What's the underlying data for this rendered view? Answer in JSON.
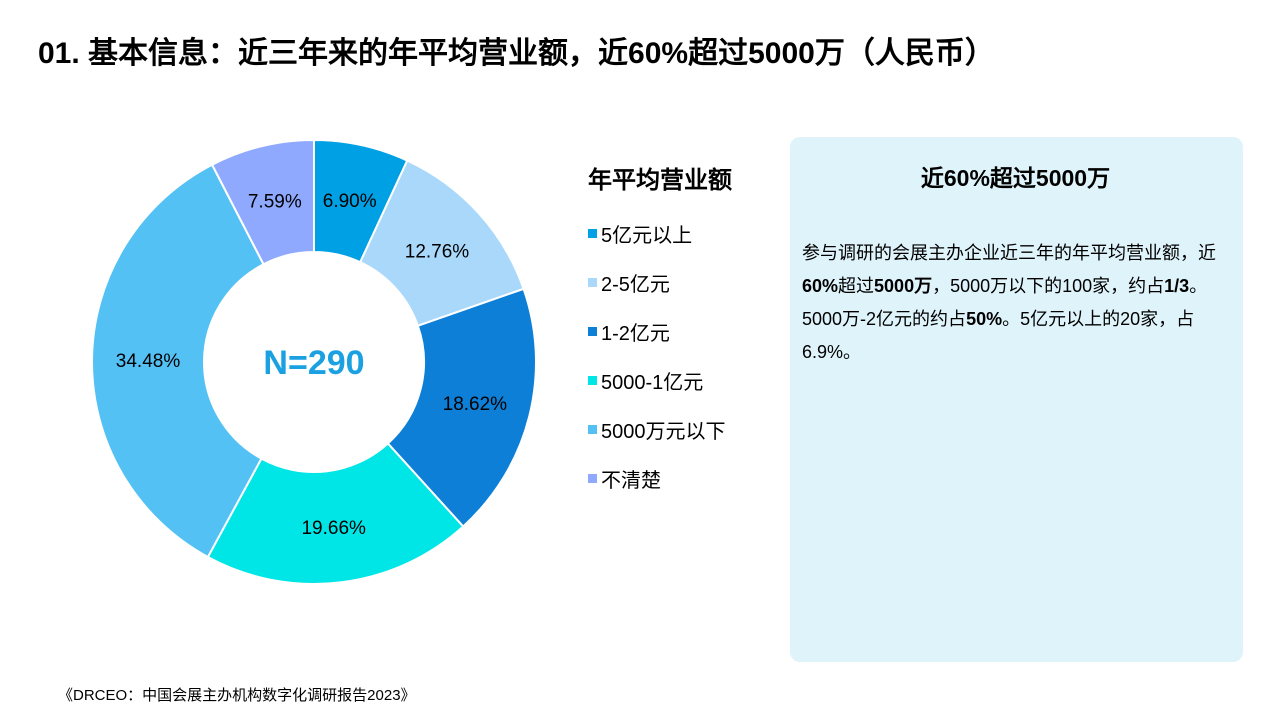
{
  "page": {
    "title": "01. 基本信息：近三年来的年平均营业额，近60%超过5000万（人民币）",
    "source": "《DRCEO：中国会展主办机构数字化调研报告2023》"
  },
  "chart_data": {
    "type": "pie",
    "variant": "donut",
    "title": "年平均营业额",
    "center_label": "N=290",
    "categories": [
      "5亿元以上",
      "2-5亿元",
      "1-2亿元",
      "5000-1亿元",
      "5000万元以下",
      "不清楚"
    ],
    "values": [
      6.9,
      12.76,
      18.62,
      19.66,
      34.48,
      7.59
    ],
    "value_labels": [
      "6.90%",
      "12.76%",
      "18.62%",
      "19.66%",
      "34.48%",
      "7.59%"
    ],
    "colors": [
      "#00a0e4",
      "#a9d8fa",
      "#0e7fd6",
      "#00e5e5",
      "#54c1f5",
      "#8fa9ff"
    ],
    "legend_position": "right",
    "start_angle_deg": 0,
    "direction": "clockwise"
  },
  "info": {
    "title": "近60%超过5000万",
    "paragraph": [
      {
        "text": "参与调研的会展主办企业近三年的年平均营业额，近",
        "bold": false
      },
      {
        "text": "60%",
        "bold": true
      },
      {
        "text": "超过",
        "bold": false
      },
      {
        "text": "5000万",
        "bold": true
      },
      {
        "text": "，5000万以下的100家，约占",
        "bold": false
      },
      {
        "text": "1/3",
        "bold": true
      },
      {
        "text": "。5000万-2亿元的约占",
        "bold": false
      },
      {
        "text": "50%",
        "bold": true
      },
      {
        "text": "。5亿元以上的20家，占6.9%。",
        "bold": false
      }
    ]
  },
  "theme": {
    "center_label_color": "#1ba1e2",
    "info_bg": "#dff3fa"
  }
}
